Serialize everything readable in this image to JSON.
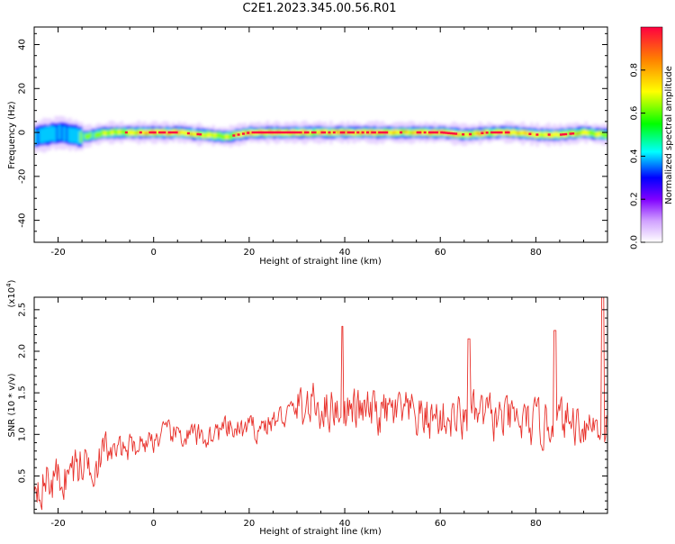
{
  "title": "C2E1.2023.345.00.56.R01",
  "chart_data": [
    {
      "type": "heatmap",
      "xlabel": "Height of straight line (km)",
      "ylabel": "Frequency (Hz)",
      "xlim": [
        -25,
        95
      ],
      "ylim": [
        -50,
        48
      ],
      "xticks": [
        -20,
        0,
        20,
        40,
        60,
        80
      ],
      "yticks": [
        -40,
        -20,
        0,
        20,
        40
      ],
      "colorbar": {
        "label": "Normalized spectral amplitude",
        "range": [
          0,
          1
        ],
        "ticks": [
          "0.0",
          "0.2",
          "0.4",
          "0.6",
          "0.8"
        ],
        "colors": [
          "#ffffff",
          "#c080ff",
          "#8000ff",
          "#0000ff",
          "#00ffff",
          "#00ff00",
          "#ffff00",
          "#ff8000",
          "#ff0040"
        ]
      },
      "ridge": {
        "x": [
          -25,
          -20,
          -15,
          -10,
          -5,
          0,
          5,
          10,
          15,
          20,
          25,
          30,
          35,
          40,
          45,
          50,
          55,
          60,
          65,
          70,
          75,
          80,
          85,
          90,
          94
        ],
        "center_freq": [
          -2,
          0,
          -2,
          0,
          0,
          0,
          0,
          -1,
          -2,
          0,
          0,
          0,
          0,
          0,
          0,
          0,
          0,
          0,
          -1,
          0,
          0,
          -1,
          -1,
          0,
          -1
        ],
        "amplitude": [
          0.45,
          0.4,
          0.5,
          0.65,
          0.7,
          0.9,
          0.8,
          0.7,
          0.6,
          0.9,
          0.9,
          0.85,
          0.75,
          0.85,
          0.8,
          0.8,
          0.85,
          0.9,
          0.75,
          0.8,
          0.8,
          0.7,
          0.75,
          0.7,
          0.6
        ]
      }
    },
    {
      "type": "line",
      "xlabel": "Height of straight line (km)",
      "ylabel": "SNR (10 * v/v)",
      "y_multiplier": "(x10^4)",
      "xlim": [
        -25,
        95
      ],
      "ylim": [
        0.05,
        2.65
      ],
      "xticks": [
        -20,
        0,
        20,
        40,
        60,
        80
      ],
      "yticks": [
        "0.5",
        "1.0",
        "1.5",
        "2.0",
        "2.5"
      ],
      "color": "#e8302a",
      "trend": {
        "x": [
          -25,
          -20,
          -15,
          -10,
          -5,
          0,
          5,
          10,
          15,
          20,
          25,
          30,
          35,
          40,
          45,
          50,
          55,
          60,
          65,
          70,
          75,
          80,
          85,
          90,
          95
        ],
        "y": [
          0.45,
          0.45,
          0.65,
          0.75,
          0.85,
          0.95,
          1.0,
          0.95,
          1.05,
          1.05,
          1.15,
          1.3,
          1.35,
          1.3,
          1.25,
          1.25,
          1.2,
          1.2,
          1.2,
          1.2,
          1.15,
          1.1,
          1.15,
          1.15,
          1.1
        ]
      },
      "peaks": [
        {
          "x": 39.5,
          "y": 2.3
        },
        {
          "x": 66,
          "y": 2.15
        },
        {
          "x": 84,
          "y": 2.25
        },
        {
          "x": 94,
          "y": 2.65
        }
      ]
    }
  ]
}
